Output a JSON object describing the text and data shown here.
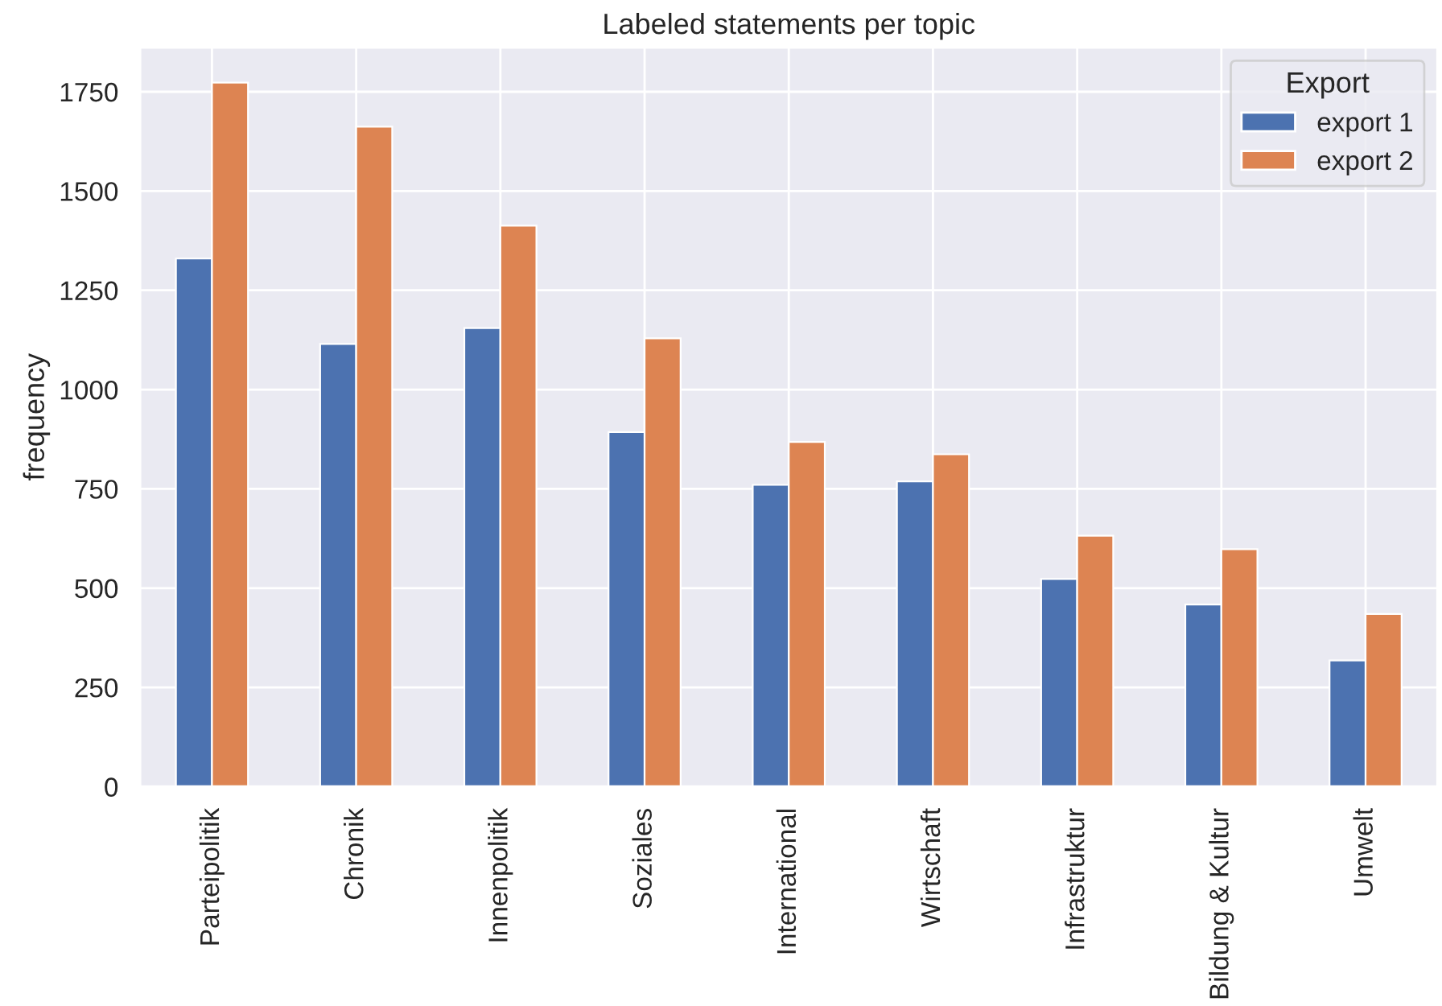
{
  "chart_data": {
    "type": "bar",
    "title": "Labeled statements per topic",
    "ylabel": "frequency",
    "legend_title": "Export",
    "categories": [
      "Parteipolitik",
      "Chronik",
      "Innenpolitik",
      "Soziales",
      "International",
      "Wirtschaft",
      "Infrastruktur",
      "Bildung & Kultur",
      "Umwelt"
    ],
    "series": [
      {
        "name": "export 1",
        "color": "#4c72b0",
        "values": [
          1330,
          1115,
          1155,
          893,
          760,
          769,
          523,
          459,
          318
        ]
      },
      {
        "name": "export 2",
        "color": "#dd8452",
        "values": [
          1773,
          1662,
          1413,
          1129,
          868,
          837,
          632,
          598,
          435
        ]
      }
    ],
    "ylim": [
      0,
      1862
    ],
    "yticks": [
      0,
      250,
      500,
      750,
      1000,
      1250,
      1500,
      1750
    ],
    "grid": true,
    "legend": "top right"
  }
}
